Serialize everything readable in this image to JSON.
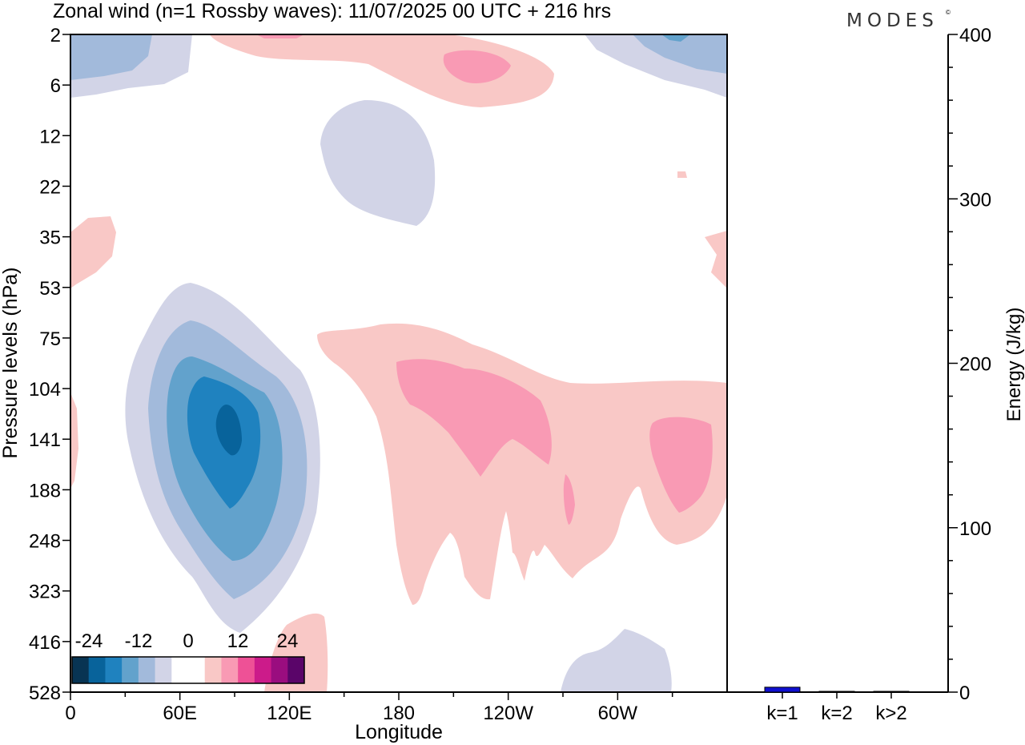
{
  "header": {
    "title": "Zonal wind (n=1 Rossby waves):  11/07/2025  00 UTC  + 216 hrs",
    "brand": "MODES",
    "brand_mark": "©"
  },
  "chart_data": [
    {
      "type": "heatmap",
      "title": "Zonal wind (n=1 Rossby waves):  11/07/2025  00 UTC  + 216 hrs",
      "xlabel": "Longitude",
      "ylabel": "Pressure levels (hPa)",
      "x_ticks": [
        "0",
        "60E",
        "120E",
        "180",
        "120W",
        "60W"
      ],
      "y_ticks": [
        "2",
        "6",
        "12",
        "22",
        "35",
        "53",
        "75",
        "104",
        "141",
        "188",
        "248",
        "323",
        "416",
        "528"
      ],
      "colorbar": {
        "labels": [
          "-24",
          "-12",
          "0",
          "12",
          "24"
        ],
        "levels": [
          -30,
          -24,
          -18,
          -12,
          -6,
          -3,
          0,
          3,
          6,
          12,
          18,
          24,
          30
        ],
        "colors": [
          "#083453",
          "#08639b",
          "#1f82bf",
          "#62a2cc",
          "#a2badb",
          "#d2d4e7",
          "#ffffff",
          "#ffffff",
          "#f9c8c6",
          "#f99ab4",
          "#ee5196",
          "#cc1b8a",
          "#9a0d7f",
          "#5a0569"
        ]
      },
      "regions": [
        {
          "name": "lower-core",
          "value": -27,
          "color": "#08639b"
        },
        {
          "name": "lower-inner",
          "value": -21,
          "color": "#1f82bf"
        },
        {
          "name": "lower-mid",
          "value": -15,
          "color": "#62a2cc"
        },
        {
          "name": "lower-outer",
          "value": -9,
          "color": "#a2badb"
        },
        {
          "name": "lower-edge",
          "value": -4,
          "color": "#d2d4e7"
        },
        {
          "name": "upper-center-lavender",
          "value": -4,
          "color": "#d2d4e7"
        },
        {
          "name": "pink-band",
          "value": 5,
          "color": "#f9c8c6"
        },
        {
          "name": "pink-band-core",
          "value": 9,
          "color": "#f99ab4"
        }
      ]
    },
    {
      "type": "bar",
      "categories": [
        "k=1",
        "k=2",
        "k>2"
      ],
      "values": [
        3,
        0.4,
        0.4
      ],
      "ylabel": "Energy (J/kg)",
      "ylim": [
        0,
        400
      ],
      "y_ticks": [
        "0",
        "100",
        "200",
        "300",
        "400"
      ],
      "colors": [
        "#1010d0",
        "#1010d0",
        "#1010d0"
      ]
    }
  ]
}
